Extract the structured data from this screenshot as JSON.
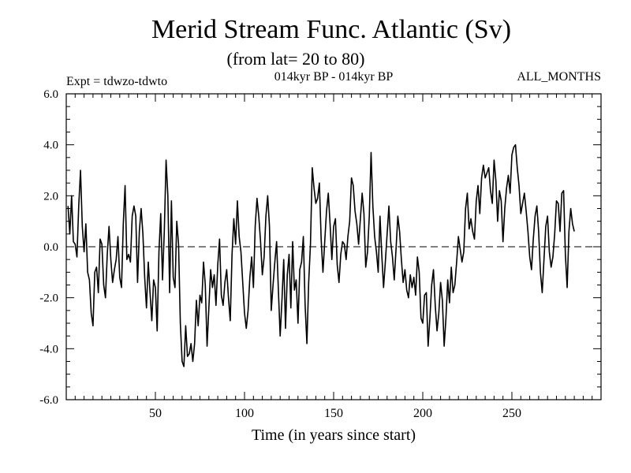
{
  "chart_data": {
    "type": "line",
    "title": "Merid Stream Func. Atlantic (Sv)",
    "subtitle": "(from lat= 20 to 80)",
    "annotations": {
      "left": "Expt = tdwzo-tdwto",
      "center": "014kyr BP - 014kyr BP",
      "right": "ALL_MONTHS"
    },
    "xlabel": "Time (in years since start)",
    "ylabel": "",
    "xlim": [
      0,
      300
    ],
    "ylim": [
      -6,
      6
    ],
    "xticks": [
      50,
      100,
      150,
      200,
      250
    ],
    "xtick_labels": [
      "50",
      "100",
      "150",
      "200",
      "250"
    ],
    "yticks": [
      -6,
      -4,
      -2,
      0,
      2,
      4,
      6
    ],
    "ytick_labels": [
      "-6.0",
      "-4.0",
      "-2.0",
      "0.0",
      "2.0",
      "4.0",
      "6.0"
    ],
    "zero_line": "dashed",
    "grid": false,
    "series": [
      {
        "x_start": 1,
        "x_step": 1,
        "values": [
          1.6,
          0.5,
          2.0,
          0.2,
          0.1,
          -0.4,
          1.6,
          3.0,
          0.8,
          -0.2,
          0.9,
          -1.0,
          -1.3,
          -2.6,
          -3.1,
          -1.0,
          -0.8,
          -1.8,
          0.3,
          0.1,
          -1.5,
          -2.0,
          -0.3,
          0.8,
          -0.5,
          -1.4,
          -0.9,
          -0.5,
          0.4,
          -1.2,
          -1.6,
          0.9,
          2.4,
          -0.5,
          -0.3,
          -0.6,
          1.2,
          1.6,
          1.2,
          -1.4,
          0.6,
          1.5,
          0.5,
          -1.2,
          -2.4,
          -0.6,
          -1.8,
          -2.9,
          -1.3,
          -1.6,
          -3.3,
          -0.2,
          1.3,
          -1.3,
          0.6,
          3.4,
          2.0,
          -1.8,
          1.8,
          -1.2,
          -1.6,
          1.0,
          0.1,
          -3.0,
          -4.5,
          -4.7,
          -3.1,
          -4.3,
          -4.2,
          -3.8,
          -4.5,
          -3.8,
          -2.1,
          -3.1,
          -1.9,
          -2.2,
          -0.6,
          -1.5,
          -3.9,
          -2.4,
          -0.9,
          -1.6,
          -1.1,
          -2.3,
          -0.7,
          0.3,
          -1.9,
          -2.3,
          -1.4,
          -0.9,
          -2.0,
          -2.9,
          -0.3,
          1.1,
          0.1,
          1.8,
          0.4,
          -0.2,
          -1.4,
          -2.6,
          -3.2,
          -2.5,
          -1.2,
          -0.4,
          -1.6,
          0.8,
          1.9,
          1.2,
          0.2,
          -1.1,
          -0.4,
          1.2,
          2.0,
          0.8,
          -2.5,
          -1.5,
          -0.6,
          0.2,
          -1.7,
          -3.5,
          -2.1,
          -0.5,
          -3.2,
          -1.1,
          -0.3,
          -2.4,
          0.2,
          -1.7,
          -1.3,
          -3.0,
          -0.9,
          -0.6,
          0.4,
          -2.3,
          -3.8,
          -1.4,
          0.1,
          3.1,
          2.3,
          1.7,
          1.9,
          2.5,
          0.3,
          -1.0,
          0.2,
          1.4,
          2.1,
          0.9,
          -0.5,
          0.8,
          1.1,
          -0.7,
          -1.4,
          -0.3,
          0.2,
          0.1,
          -0.5,
          0.4,
          1.0,
          2.7,
          2.4,
          1.4,
          0.9,
          0.1,
          1.1,
          2.1,
          1.3,
          -0.8,
          -0.2,
          1.2,
          3.7,
          1.6,
          0.4,
          -0.2,
          -1.0,
          1.2,
          -0.3,
          -1.6,
          -0.6,
          0.5,
          1.6,
          0.2,
          -0.4,
          -1.3,
          -0.1,
          1.2,
          0.6,
          -0.5,
          -1.4,
          -0.9,
          -1.7,
          -2.0,
          -1.1,
          -1.6,
          -1.2,
          -1.9,
          -0.4,
          -1.0,
          -2.8,
          -3.0,
          -1.9,
          -1.8,
          -3.9,
          -2.8,
          -1.5,
          -0.9,
          -2.3,
          -3.3,
          -2.6,
          -1.4,
          -2.1,
          -3.9,
          -2.8,
          -1.3,
          -2.2,
          -0.8,
          -1.8,
          -1.5,
          -0.6,
          0.4,
          -0.1,
          -0.6,
          -0.2,
          1.5,
          2.1,
          0.7,
          1.1,
          0.6,
          0.3,
          1.8,
          2.4,
          1.3,
          2.7,
          3.2,
          2.7,
          2.9,
          3.1,
          2.2,
          1.7,
          3.4,
          2.6,
          1.0,
          2.2,
          1.8,
          0.2,
          1.5,
          2.3,
          2.8,
          2.1,
          3.6,
          3.9,
          4.0,
          3.1,
          2.4,
          1.3,
          1.7,
          2.1,
          1.4,
          0.6,
          -0.4,
          -0.9,
          0.3,
          1.2,
          1.6,
          0.6,
          -1.0,
          -1.8,
          -0.5,
          0.8,
          1.2,
          -0.2,
          -0.8,
          -0.4,
          0.5,
          1.8,
          1.7,
          0.6,
          2.1,
          2.2,
          -0.3,
          -1.6,
          0.6,
          1.5,
          0.9,
          0.6
        ]
      }
    ]
  }
}
